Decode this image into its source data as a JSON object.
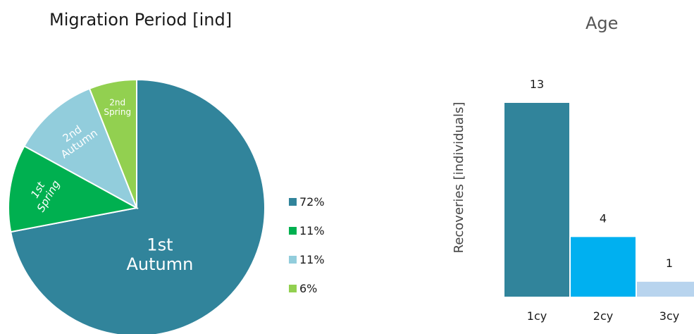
{
  "chart_data": [
    {
      "type": "pie",
      "title": "Migration Period [ind]",
      "slices": [
        {
          "label_lines": [
            "1st",
            "Autumn"
          ],
          "value": 72,
          "color": "#31849b",
          "legend": "72%"
        },
        {
          "label_lines": [
            "1st",
            "Spring"
          ],
          "value": 11,
          "color": "#00b050",
          "legend": "11%"
        },
        {
          "label_lines": [
            "2nd",
            "Autumn"
          ],
          "value": 11,
          "color": "#92cddc",
          "legend": "11%"
        },
        {
          "label_lines": [
            "2nd",
            "Spring"
          ],
          "value": 6,
          "color": "#92d050",
          "legend": "6%"
        }
      ],
      "legend_position": "right"
    },
    {
      "type": "bar",
      "title": "Age",
      "ylabel": "Recoveries  [individuals]",
      "categories": [
        "1cy",
        "2cy",
        "3cy"
      ],
      "values": [
        13,
        4,
        1
      ],
      "data_labels": [
        "13",
        "4",
        "1"
      ],
      "colors": [
        "#31849b",
        "#00b0f0",
        "#b8d4ee"
      ],
      "ylim": [
        0,
        13
      ],
      "grid": false
    }
  ]
}
